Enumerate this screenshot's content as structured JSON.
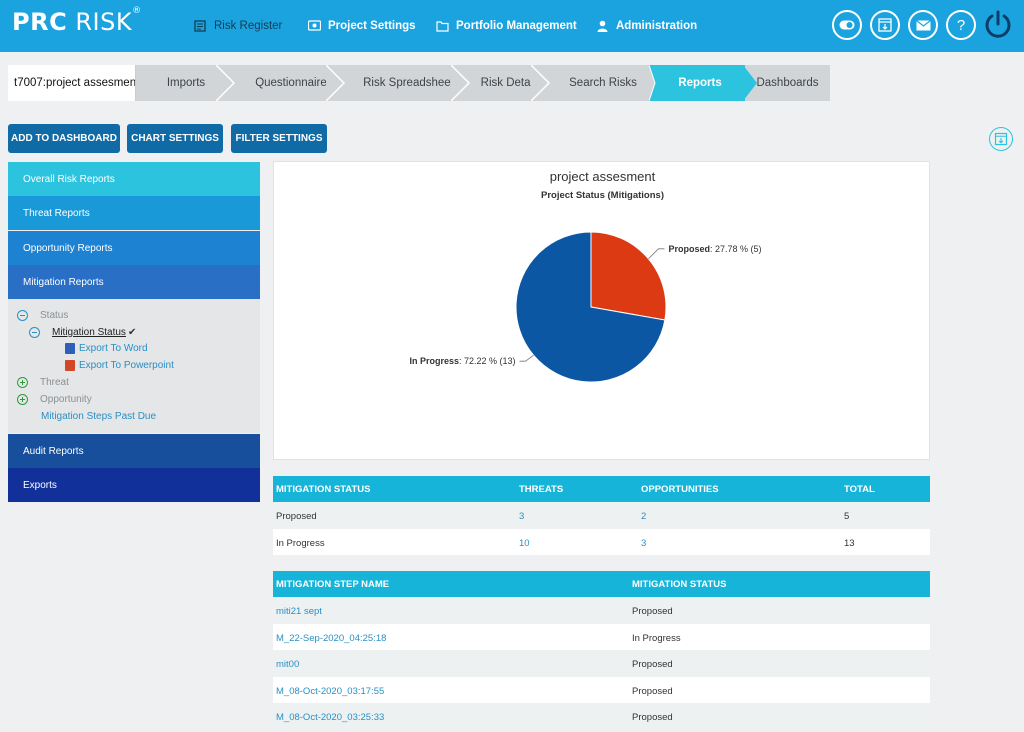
{
  "header": {
    "logo_text": "PRC RISK",
    "nav": [
      {
        "label": "Risk Register",
        "icon": "register-icon"
      },
      {
        "label": "Project Settings",
        "icon": "settings-icon"
      },
      {
        "label": "Portfolio Management",
        "icon": "folder-icon"
      },
      {
        "label": "Administration",
        "icon": "user-icon"
      }
    ],
    "buttons": [
      "toggle-icon",
      "download-icon",
      "mail-icon",
      "help-icon",
      "power-icon"
    ],
    "help_glyph": "?"
  },
  "breadcrumb": {
    "project": "t7007:project assesmen",
    "steps": [
      "Imports",
      "Questionnaire",
      "Risk Spreadsheet",
      "Risk Details",
      "Search Risks",
      "Reports",
      "Dashboards"
    ],
    "active": "Reports"
  },
  "toolbar": {
    "add_dashboard": "ADD TO DASHBOARD",
    "chart_settings": "CHART SETTINGS",
    "filter_settings": "FILTER SETTINGS"
  },
  "sidebar": {
    "items": [
      {
        "label": "Overall Risk Reports",
        "color": "#2cc3df"
      },
      {
        "label": "Threat Reports",
        "color": "#1a99d8"
      },
      {
        "label": "Opportunity Reports",
        "color": "#1e82d2"
      },
      {
        "label": "Mitigation Reports",
        "color": "#2a6fc6"
      },
      {
        "label": "Audit Reports",
        "color": "#174f9c"
      },
      {
        "label": "Exports",
        "color": "#12309a"
      }
    ],
    "tree": {
      "status": "Status",
      "mitigation_status": "Mitigation Status",
      "export_word": "Export To Word",
      "export_ppt": "Export To Powerpoint",
      "threat": "Threat",
      "opportunity": "Opportunity",
      "steps_past_due": "Mitigation Steps Past Due",
      "checkmark": "✔"
    }
  },
  "chart_data": {
    "type": "pie",
    "title": "project assesment",
    "subtitle": "Project Status (Mitigations)",
    "slices": [
      {
        "label": "Proposed",
        "value": 5,
        "percent_text": "27.78 % (5)",
        "color": "#dc3a12"
      },
      {
        "label": "In Progress",
        "value": 13,
        "percent_text": "72.22 % (13)",
        "color": "#0b57a4"
      }
    ]
  },
  "status_table": {
    "headers": [
      "MITIGATION STATUS",
      "THREATS",
      "OPPORTUNITIES",
      "TOTAL"
    ],
    "rows": [
      [
        "Proposed",
        "3",
        "2",
        "5"
      ],
      [
        "In Progress",
        "10",
        "3",
        "13"
      ]
    ]
  },
  "steps_table": {
    "headers": [
      "MITIGATION STEP NAME",
      "MITIGATION STATUS"
    ],
    "rows": [
      [
        "miti21 sept",
        "Proposed"
      ],
      [
        "M_22-Sep-2020_04:25:18",
        "In Progress"
      ],
      [
        "mit00",
        "Proposed"
      ],
      [
        "M_08-Oct-2020_03:17:55",
        "Proposed"
      ],
      [
        "M_08-Oct-2020_03:25:33",
        "Proposed"
      ]
    ]
  }
}
